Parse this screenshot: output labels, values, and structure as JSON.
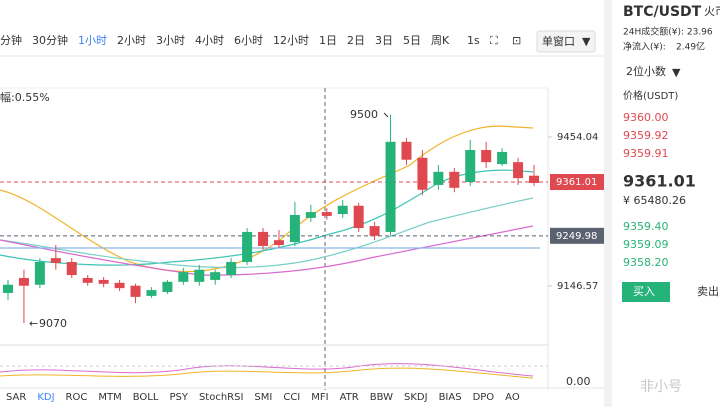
{
  "toolbar": {
    "intervals": [
      "分钟",
      "30分钟",
      "1小时",
      "2小时",
      "3小时",
      "4小时",
      "6小时",
      "12小时",
      "1日",
      "2日",
      "3日",
      "5日",
      "周K"
    ],
    "active_index": 2,
    "seconds": "1s",
    "window_mode": "单窗口"
  },
  "chart": {
    "type": "candlestick",
    "amplitude": "幅:0.55%",
    "ylim": [
      9035,
      9555
    ],
    "yticks": [
      9454.04,
      9146.57
    ],
    "price_tags": [
      {
        "value": 9361.01,
        "color": "#e0484f"
      },
      {
        "value": 9249.98,
        "color": "#5a6270"
      }
    ],
    "high_marker": 9500,
    "low_marker": 9070,
    "up_color": "#26b37a",
    "down_color": "#e0484f",
    "candles": [
      {
        "o": 9132,
        "c": 9149,
        "h": 9159,
        "l": 9118
      },
      {
        "o": 9163,
        "c": 9147,
        "h": 9180,
        "l": 9070
      },
      {
        "o": 9149,
        "c": 9196,
        "h": 9204,
        "l": 9142
      },
      {
        "o": 9204,
        "c": 9194,
        "h": 9231,
        "l": 9180
      },
      {
        "o": 9196,
        "c": 9169,
        "h": 9204,
        "l": 9163
      },
      {
        "o": 9163,
        "c": 9153,
        "h": 9169,
        "l": 9147
      },
      {
        "o": 9159,
        "c": 9151,
        "h": 9165,
        "l": 9144
      },
      {
        "o": 9153,
        "c": 9142,
        "h": 9159,
        "l": 9136
      },
      {
        "o": 9147,
        "c": 9124,
        "h": 9151,
        "l": 9111
      },
      {
        "o": 9126,
        "c": 9138,
        "h": 9144,
        "l": 9122
      },
      {
        "o": 9134,
        "c": 9155,
        "h": 9159,
        "l": 9130
      },
      {
        "o": 9155,
        "c": 9175,
        "h": 9184,
        "l": 9149
      },
      {
        "o": 9155,
        "c": 9180,
        "h": 9190,
        "l": 9147
      },
      {
        "o": 9159,
        "c": 9175,
        "h": 9180,
        "l": 9149
      },
      {
        "o": 9169,
        "c": 9196,
        "h": 9204,
        "l": 9163
      },
      {
        "o": 9196,
        "c": 9258,
        "h": 9266,
        "l": 9190
      },
      {
        "o": 9258,
        "c": 9229,
        "h": 9266,
        "l": 9221
      },
      {
        "o": 9241,
        "c": 9231,
        "h": 9262,
        "l": 9225
      },
      {
        "o": 9237,
        "c": 9293,
        "h": 9320,
        "l": 9229
      },
      {
        "o": 9287,
        "c": 9299,
        "h": 9314,
        "l": 9279
      },
      {
        "o": 9299,
        "c": 9291,
        "h": 9307,
        "l": 9283
      },
      {
        "o": 9295,
        "c": 9312,
        "h": 9324,
        "l": 9287
      },
      {
        "o": 9312,
        "c": 9266,
        "h": 9318,
        "l": 9258
      },
      {
        "o": 9270,
        "c": 9250,
        "h": 9279,
        "l": 9241
      },
      {
        "o": 9258,
        "c": 9444,
        "h": 9500,
        "l": 9250
      },
      {
        "o": 9444,
        "c": 9407,
        "h": 9452,
        "l": 9396
      },
      {
        "o": 9411,
        "c": 9345,
        "h": 9427,
        "l": 9334
      },
      {
        "o": 9355,
        "c": 9382,
        "h": 9396,
        "l": 9345
      },
      {
        "o": 9382,
        "c": 9349,
        "h": 9390,
        "l": 9340
      },
      {
        "o": 9361,
        "c": 9427,
        "h": 9448,
        "l": 9353
      },
      {
        "o": 9427,
        "c": 9402,
        "h": 9444,
        "l": 9390
      },
      {
        "o": 9398,
        "c": 9423,
        "h": 9431,
        "l": 9394
      },
      {
        "o": 9402,
        "c": 9369,
        "h": 9411,
        "l": 9355
      },
      {
        "o": 9374,
        "c": 9359,
        "h": 9396,
        "l": 9353
      }
    ],
    "indicator_axis": "0.00",
    "indicators": [
      "SAR",
      "KDJ",
      "ROC",
      "MTM",
      "BOLL",
      "PSY",
      "StochRSI",
      "SMI",
      "CCI",
      "MFI",
      "ATR",
      "BBW",
      "SKDJ",
      "BIAS",
      "DPO",
      "AO"
    ],
    "active_indicator_index": 1
  },
  "panel": {
    "pair": "BTC/USDT",
    "exchange": "火币",
    "turnover": "24H成交额(¥): 23.96",
    "net_inflow_label": "净流入(¥): ",
    "net_inflow": "2.49亿",
    "decimals": "2位小数",
    "price_header": "价格(USDT)",
    "asks": [
      "9360.00",
      "9359.92",
      "9359.91"
    ],
    "last": "9361.01",
    "last_cny": "¥ 65480.26",
    "bids": [
      "9359.40",
      "9359.09",
      "9358.20"
    ],
    "buy": "买入",
    "sell": "卖出"
  },
  "watermark": "非小号"
}
